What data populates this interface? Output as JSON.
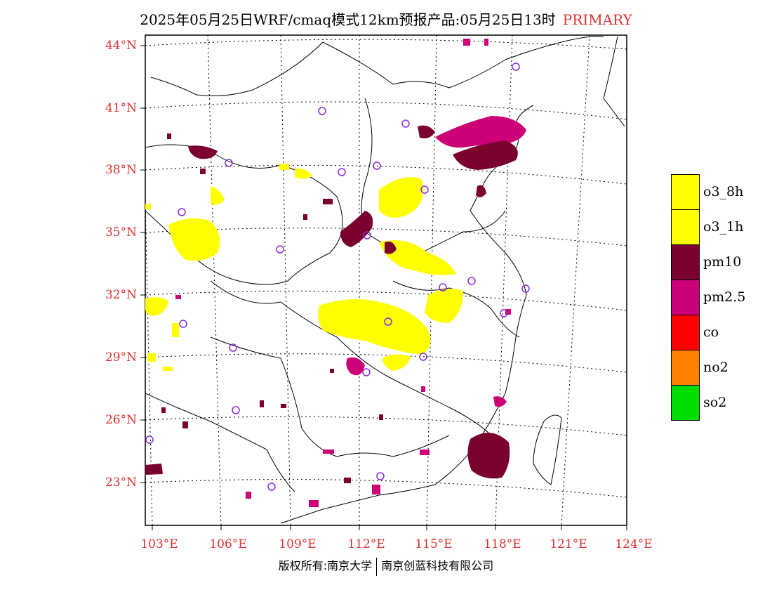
{
  "title": {
    "main": "2025年05月25日WRF/cmaq模式12km预报产品:05月25日13时",
    "tag": "PRIMARY"
  },
  "axes": {
    "lat_labels": [
      "44°N",
      "41°N",
      "38°N",
      "35°N",
      "32°N",
      "29°N",
      "26°N",
      "23°N"
    ],
    "lon_labels": [
      "103°E",
      "106°E",
      "109°E",
      "112°E",
      "115°E",
      "118°E",
      "121°E",
      "124°E"
    ]
  },
  "legend": [
    {
      "label": "o3_8h",
      "color": "#ffff00"
    },
    {
      "label": "o3_1h",
      "color": "#ffff00"
    },
    {
      "label": "pm10",
      "color": "#7a0030"
    },
    {
      "label": "pm2.5",
      "color": "#cc0077"
    },
    {
      "label": "co",
      "color": "#ff0000"
    },
    {
      "label": "no2",
      "color": "#ff8000"
    },
    {
      "label": "so2",
      "color": "#00dd00"
    }
  ],
  "footer": {
    "left": "版权所有:南京大学",
    "right": "南京创蓝科技有限公司"
  },
  "colors": {
    "accent": "#e03030",
    "station_marker": "#8a2be2"
  }
}
